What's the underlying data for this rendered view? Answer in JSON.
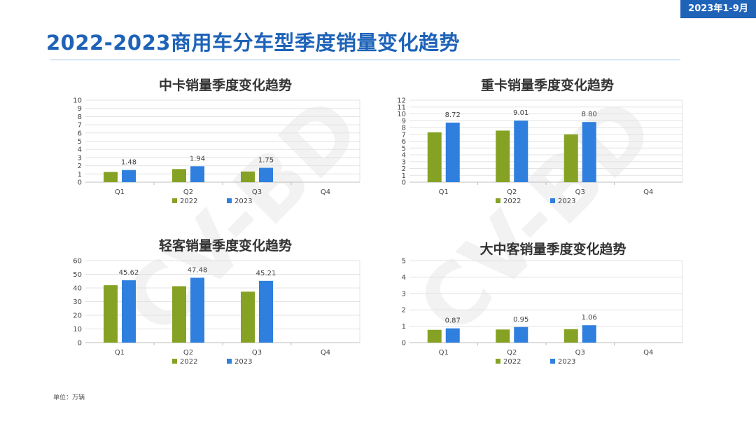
{
  "badge": "2023年1-9月",
  "title": "2022-2023商用车分车型季度销量变化趋势",
  "unit_note": "单位：万辆",
  "watermark": "CV-BD",
  "colors": {
    "y2022": "#86a224",
    "y2023": "#2e7fde",
    "grid": "#e3e3e3",
    "axis": "#bfbfbf"
  },
  "chart_data": [
    {
      "type": "bar",
      "title": "中卡销量季度变化趋势",
      "categories": [
        "Q1",
        "Q2",
        "Q3",
        "Q4"
      ],
      "ylim": [
        0,
        10
      ],
      "yticks": [
        0,
        1,
        2,
        3,
        4,
        5,
        6,
        7,
        8,
        9,
        10
      ],
      "series": [
        {
          "name": "2022",
          "color": "#86a224",
          "values": [
            1.25,
            1.6,
            1.3,
            null
          ],
          "labels": [
            null,
            null,
            null,
            null
          ]
        },
        {
          "name": "2023",
          "color": "#2e7fde",
          "values": [
            1.48,
            1.94,
            1.75,
            null
          ],
          "labels": [
            "1.48",
            "1.94",
            "1.75",
            null
          ]
        }
      ],
      "legend": "bottom"
    },
    {
      "type": "bar",
      "title": "重卡销量季度变化趋势",
      "categories": [
        "Q1",
        "Q2",
        "Q3",
        "Q4"
      ],
      "ylim": [
        0,
        12
      ],
      "yticks": [
        0,
        1,
        2,
        3,
        4,
        5,
        6,
        7,
        8,
        9,
        10,
        11,
        12
      ],
      "series": [
        {
          "name": "2022",
          "color": "#86a224",
          "values": [
            7.3,
            7.55,
            7.0,
            null
          ],
          "labels": [
            null,
            null,
            null,
            null
          ]
        },
        {
          "name": "2023",
          "color": "#2e7fde",
          "values": [
            8.72,
            9.01,
            8.8,
            null
          ],
          "labels": [
            "8.72",
            "9.01",
            "8.80",
            null
          ]
        }
      ],
      "legend": "bottom"
    },
    {
      "type": "bar",
      "title": "轻客销量季度变化趋势",
      "categories": [
        "Q1",
        "Q2",
        "Q3",
        "Q4"
      ],
      "ylim": [
        0,
        60
      ],
      "yticks": [
        0,
        10,
        20,
        30,
        40,
        50,
        60
      ],
      "series": [
        {
          "name": "2022",
          "color": "#86a224",
          "values": [
            42.0,
            41.3,
            37.3,
            null
          ],
          "labels": [
            null,
            null,
            null,
            null
          ]
        },
        {
          "name": "2023",
          "color": "#2e7fde",
          "values": [
            45.62,
            47.48,
            45.21,
            null
          ],
          "labels": [
            "45.62",
            "47.48",
            "45.21",
            null
          ]
        }
      ],
      "legend": "bottom"
    },
    {
      "type": "bar",
      "title": "大中客销量季度变化趋势",
      "categories": [
        "Q1",
        "Q2",
        "Q3",
        "Q4"
      ],
      "ylim": [
        0,
        5
      ],
      "yticks": [
        0,
        1,
        2,
        3,
        4,
        5
      ],
      "series": [
        {
          "name": "2022",
          "color": "#86a224",
          "values": [
            0.78,
            0.8,
            0.82,
            null
          ],
          "labels": [
            null,
            null,
            null,
            null
          ]
        },
        {
          "name": "2023",
          "color": "#2e7fde",
          "values": [
            0.87,
            0.95,
            1.06,
            null
          ],
          "labels": [
            "0.87",
            "0.95",
            "1.06",
            null
          ]
        }
      ],
      "legend": "bottom"
    }
  ]
}
